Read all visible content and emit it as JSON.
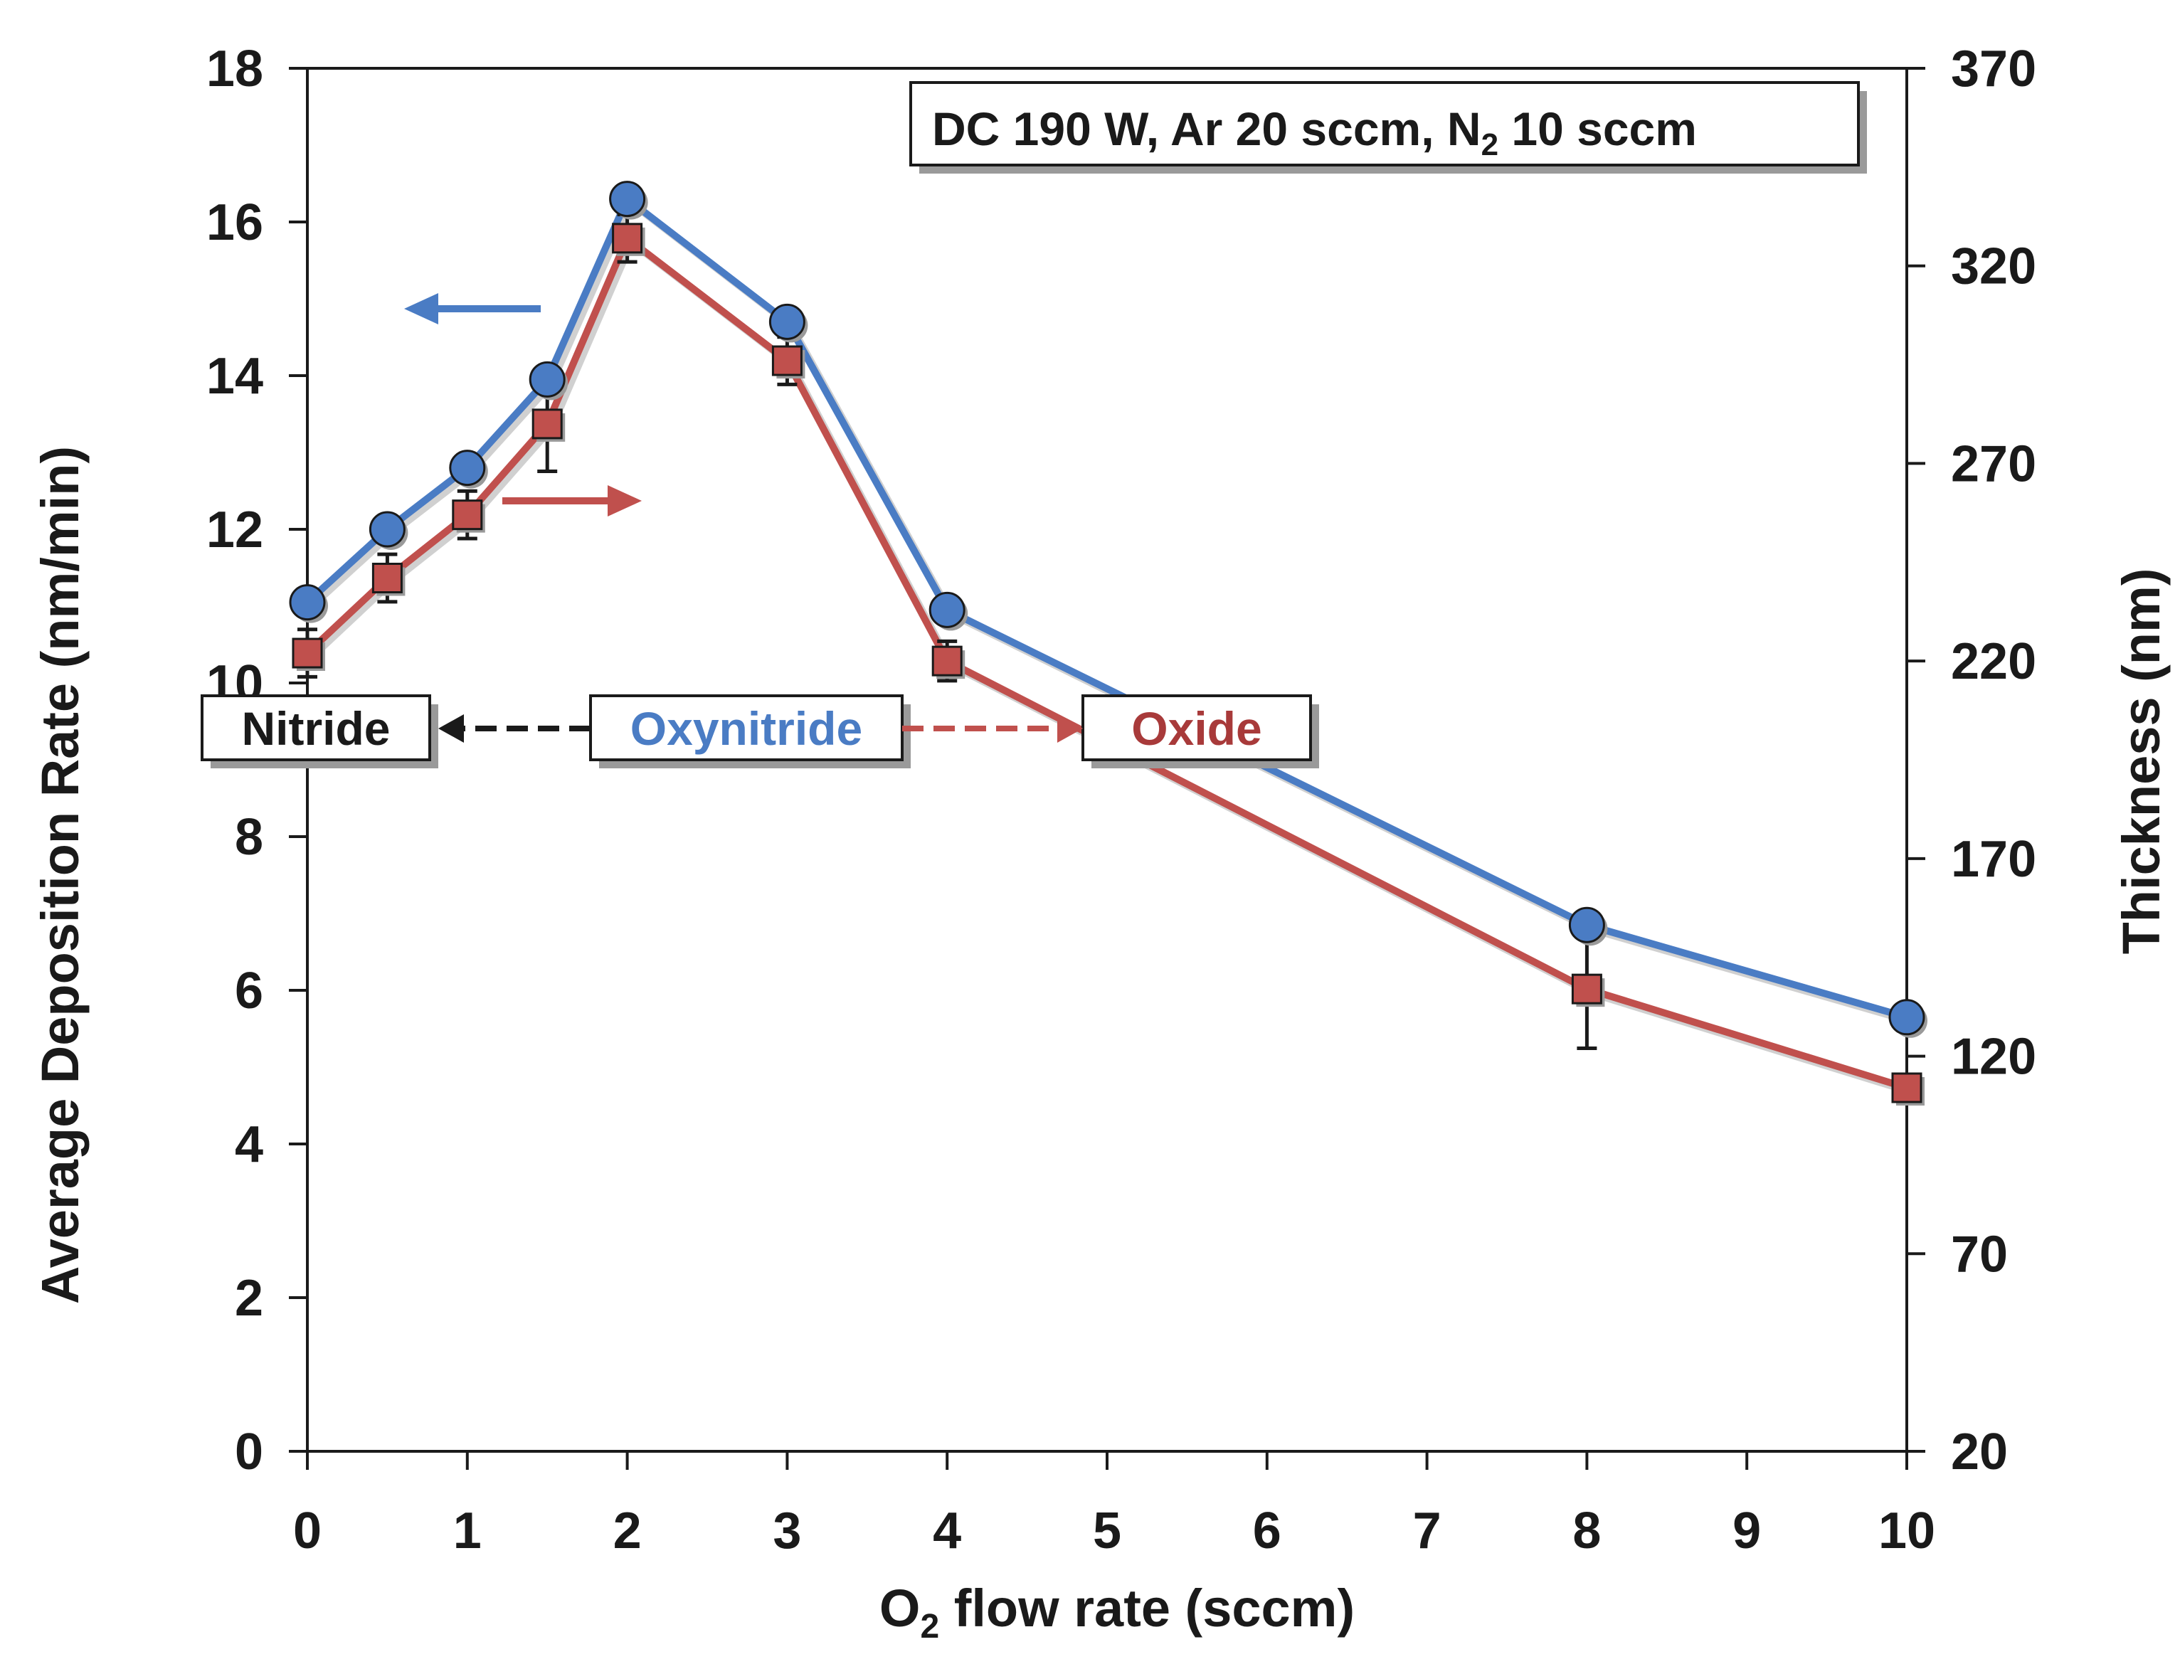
{
  "chart_data": {
    "type": "line",
    "title": "",
    "xlabel_main": "O",
    "xlabel_sub": "2",
    "xlabel_rest": " flow rate (sccm)",
    "ylabel_left": "Average Deposition Rate (nm/min)",
    "ylabel_right": "Thickness (nm)",
    "xlim": [
      0,
      10
    ],
    "ylim_left": [
      0,
      18
    ],
    "ylim_right": [
      20,
      370
    ],
    "x_ticks": [
      "0",
      "1",
      "2",
      "3",
      "4",
      "5",
      "6",
      "7",
      "8",
      "9",
      "10"
    ],
    "y_left_ticks": [
      "0",
      "2",
      "4",
      "6",
      "8",
      "10",
      "12",
      "14",
      "16",
      "18"
    ],
    "y_right_ticks": [
      "20",
      "70",
      "120",
      "170",
      "220",
      "270",
      "320",
      "370"
    ],
    "series": [
      {
        "name": "Average Deposition Rate",
        "axis": "left",
        "marker": "circle",
        "color": "#4a7cc4",
        "x": [
          0,
          0.5,
          1,
          1.5,
          2,
          3,
          4,
          8,
          10
        ],
        "y": [
          11.05,
          12.0,
          12.8,
          13.95,
          16.3,
          14.7,
          10.95,
          6.85,
          5.65
        ]
      },
      {
        "name": "Thickness",
        "axis": "right",
        "marker": "square",
        "color": "#c0504d",
        "x": [
          0,
          0.5,
          1,
          1.5,
          2,
          3,
          4,
          8,
          10
        ],
        "y": [
          222,
          241,
          257,
          280,
          327,
          296,
          220,
          137,
          112
        ],
        "err": [
          6,
          6,
          6,
          12,
          6,
          6,
          5,
          15,
          2
        ]
      }
    ],
    "annotation_box": {
      "line1": "DC 190 W, Ar 20 sccm, N",
      "sub": "2",
      "line2": " 10 sccm"
    },
    "phase_labels": [
      {
        "text": "Nitride",
        "color": "#1a1a1a"
      },
      {
        "text": "Oxynitride",
        "color": "#4a7cc4"
      },
      {
        "text": "Oxide",
        "color": "#a83a3a"
      }
    ]
  }
}
